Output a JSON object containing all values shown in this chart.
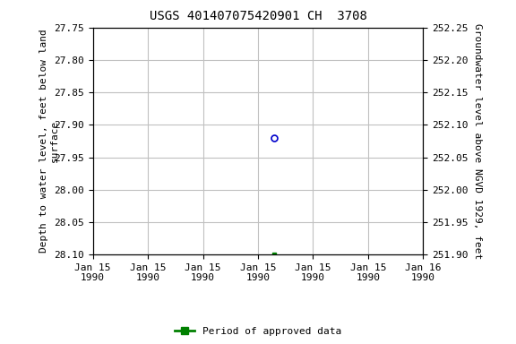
{
  "title": "USGS 401407075420901 CH  3708",
  "ylabel_left": "Depth to water level, feet below land\nsurface",
  "ylabel_right": "Groundwater level above NGVD 1929, feet",
  "ylim_left": [
    28.1,
    27.75
  ],
  "ylim_right": [
    251.9,
    252.25
  ],
  "yticks_left": [
    27.75,
    27.8,
    27.85,
    27.9,
    27.95,
    28.0,
    28.05,
    28.1
  ],
  "yticks_right": [
    252.25,
    252.2,
    252.15,
    252.1,
    252.05,
    252.0,
    251.95,
    251.9
  ],
  "point1_x": 3.3,
  "point1_depth": 27.92,
  "point1_color": "#0000cc",
  "point2_x": 3.3,
  "point2_depth": 28.1,
  "point2_color": "#008000",
  "legend_label": "Period of approved data",
  "legend_color": "#008000",
  "background_color": "#ffffff",
  "grid_color": "#c0c0c0",
  "title_fontsize": 10,
  "axis_fontsize": 8,
  "tick_fontsize": 8,
  "xtick_labels": [
    "Jan 15\n1990",
    "Jan 15\n1990",
    "Jan 15\n1990",
    "Jan 15\n1990",
    "Jan 15\n1990",
    "Jan 15\n1990",
    "Jan 16\n1990"
  ],
  "x_min": 0,
  "x_max": 6
}
